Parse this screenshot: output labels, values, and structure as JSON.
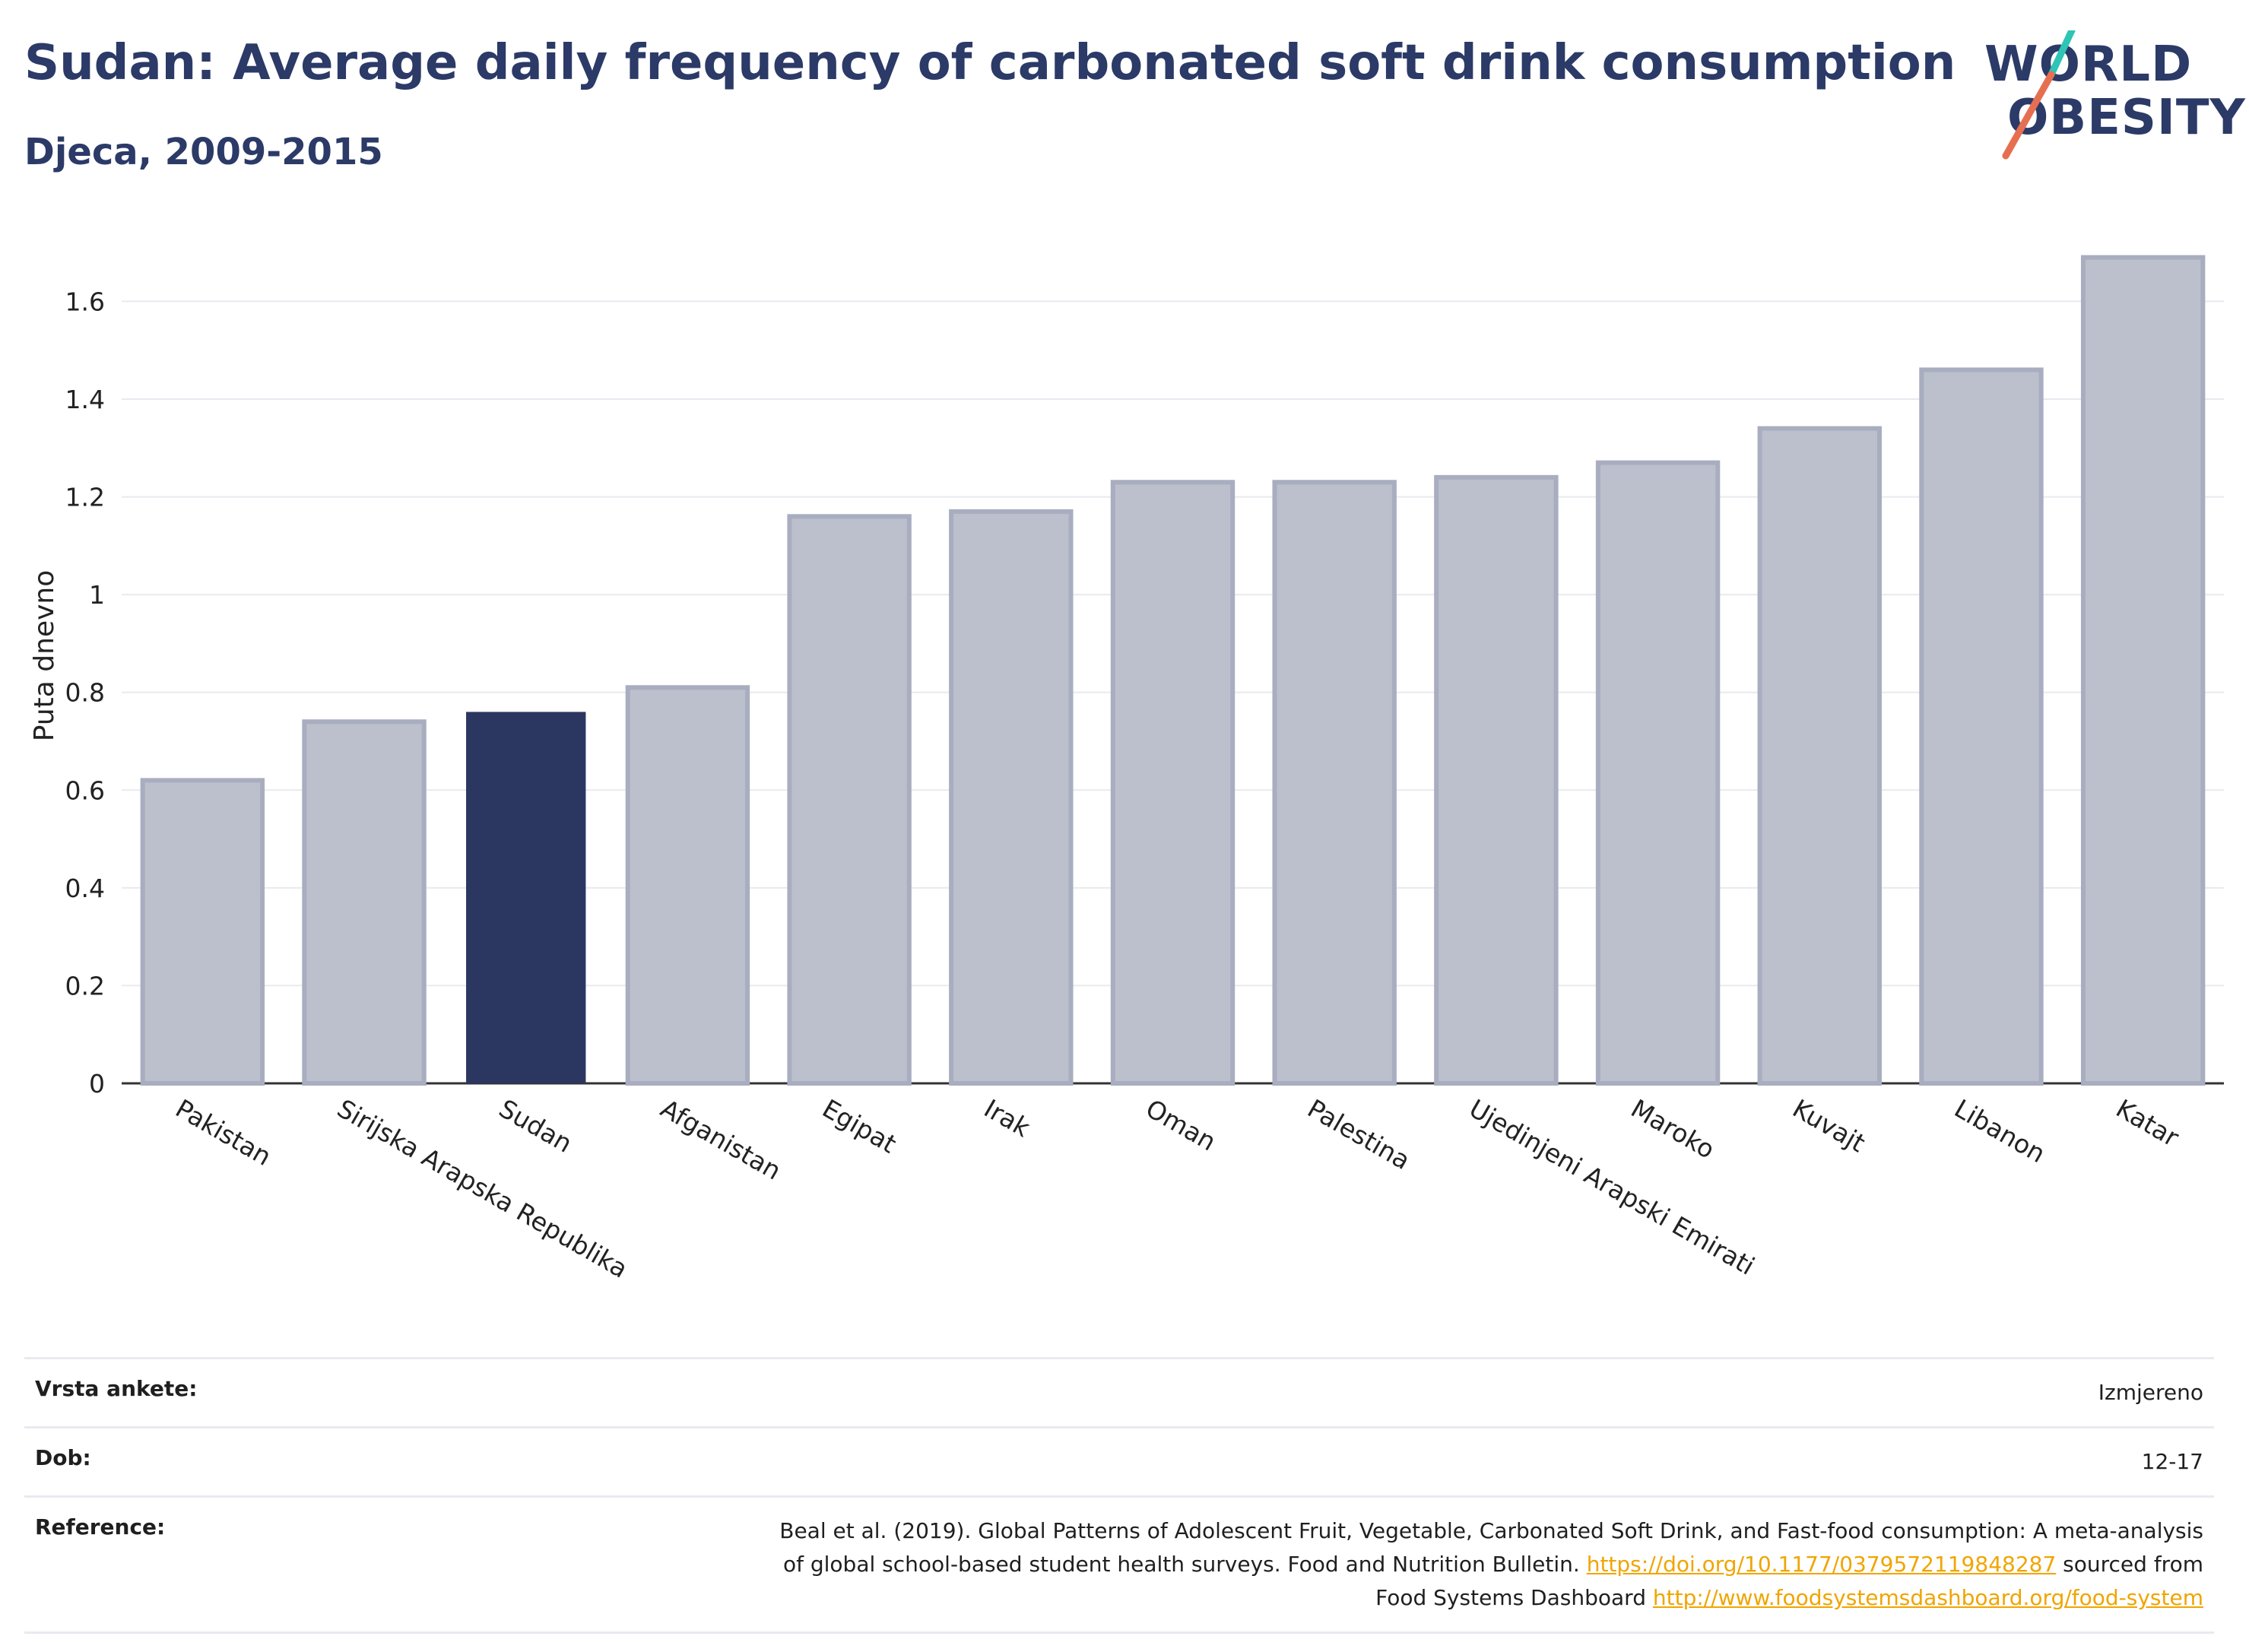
{
  "header": {
    "title": "Sudan: Average daily frequency of carbonated soft drink consumption",
    "subtitle": "Djeca, 2009-2015"
  },
  "logo": {
    "line1": "WORLD",
    "line2": "OBESITY",
    "accent_colors": [
      "#2ec4b6",
      "#e76f51"
    ]
  },
  "chart_data": {
    "type": "bar",
    "categories": [
      "Pakistan",
      "Sirijska Arapska Republika",
      "Sudan",
      "Afganistan",
      "Egipat",
      "Irak",
      "Oman",
      "Palestina",
      "Ujedinjeni Arapski Emirati",
      "Maroko",
      "Kuvajt",
      "Libanon",
      "Katar"
    ],
    "values": [
      0.62,
      0.74,
      0.76,
      0.81,
      1.16,
      1.17,
      1.23,
      1.23,
      1.24,
      1.27,
      1.34,
      1.46,
      1.69
    ],
    "highlight": "Sudan",
    "ylabel": "Puta dnevno",
    "xlabel": "",
    "ylim": [
      0,
      1.75
    ],
    "yticks": [
      0,
      0.2,
      0.4,
      0.6,
      0.8,
      1,
      1.2,
      1.4,
      1.6
    ],
    "ytick_labels": [
      "0",
      "0.2",
      "0.4",
      "0.6",
      "0.8",
      "1",
      "1.2",
      "1.4",
      "1.6"
    ],
    "grid": true,
    "colors": {
      "default": "#bcc0cd",
      "default_border": "#a8adbf",
      "highlight": "#2b3761"
    }
  },
  "meta": [
    {
      "key": "Vrsta ankete:",
      "value": "Izmjereno"
    },
    {
      "key": "Dob:",
      "value": "12-17"
    }
  ],
  "reference": {
    "key": "Reference:",
    "line1": "Beal et al. (2019). Global Patterns of Adolescent Fruit, Vegetable, Carbonated Soft Drink, and Fast-food consumption: A meta-analysis",
    "line2_text": "of global school-based student health surveys. Food and Nutrition Bulletin.",
    "line2_link": "https://doi.org/10.1177/0379572119848287",
    "line2_suffix": "sourced from",
    "line3_text": "Food Systems Dashboard",
    "line3_link": "http://www.foodsystemsdashboard.org/food-system"
  }
}
